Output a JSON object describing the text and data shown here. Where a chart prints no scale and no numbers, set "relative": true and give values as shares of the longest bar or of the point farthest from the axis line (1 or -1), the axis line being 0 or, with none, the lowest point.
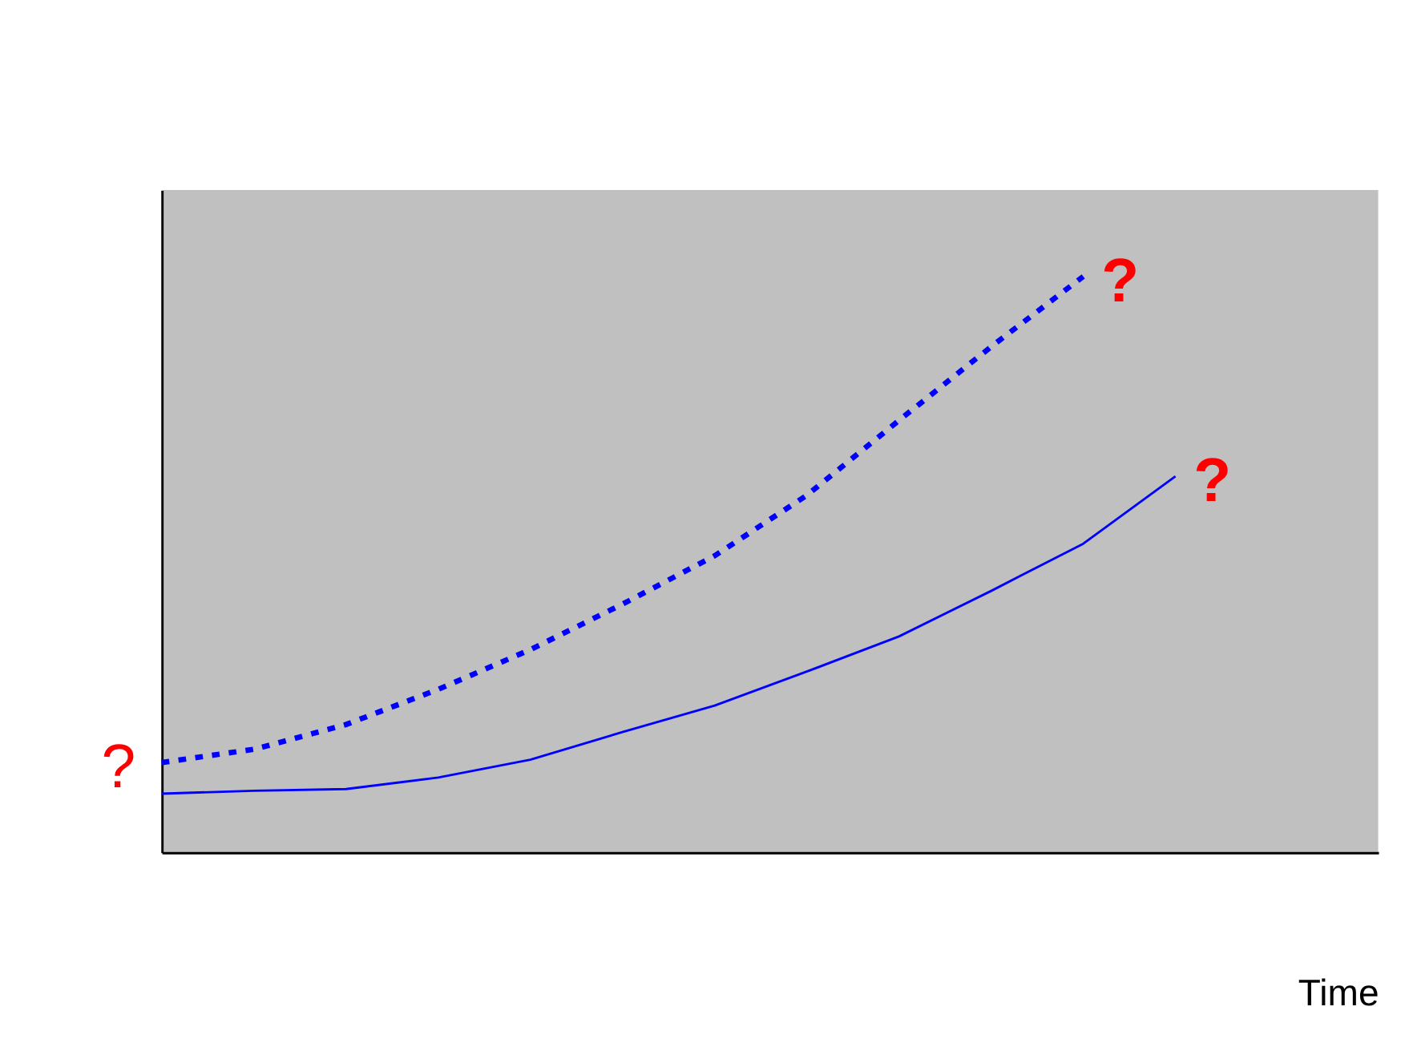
{
  "chart_data": {
    "type": "line",
    "relative": true,
    "xlabel": "Time",
    "tick_labels": false,
    "marker": "none",
    "categories": [
      null,
      null,
      null,
      null,
      null,
      null,
      null,
      null,
      null,
      null,
      null,
      null
    ],
    "series": [
      {
        "color": "#0000ff",
        "line_style": "solid",
        "values": [
          0.102,
          0.107,
          0.11,
          0.13,
          0.161,
          0.209,
          0.255,
          0.314,
          0.375,
          0.454,
          0.536,
          0.653
        ]
      },
      {
        "color": "#0000ff",
        "line_style": "dotted",
        "values": [
          0.156,
          0.179,
          0.222,
          0.283,
          0.352,
          0.431,
          0.515,
          0.62,
          0.75,
          0.878,
          1,
          null
        ]
      }
    ],
    "annotations": [
      "?",
      "?",
      "?"
    ]
  }
}
